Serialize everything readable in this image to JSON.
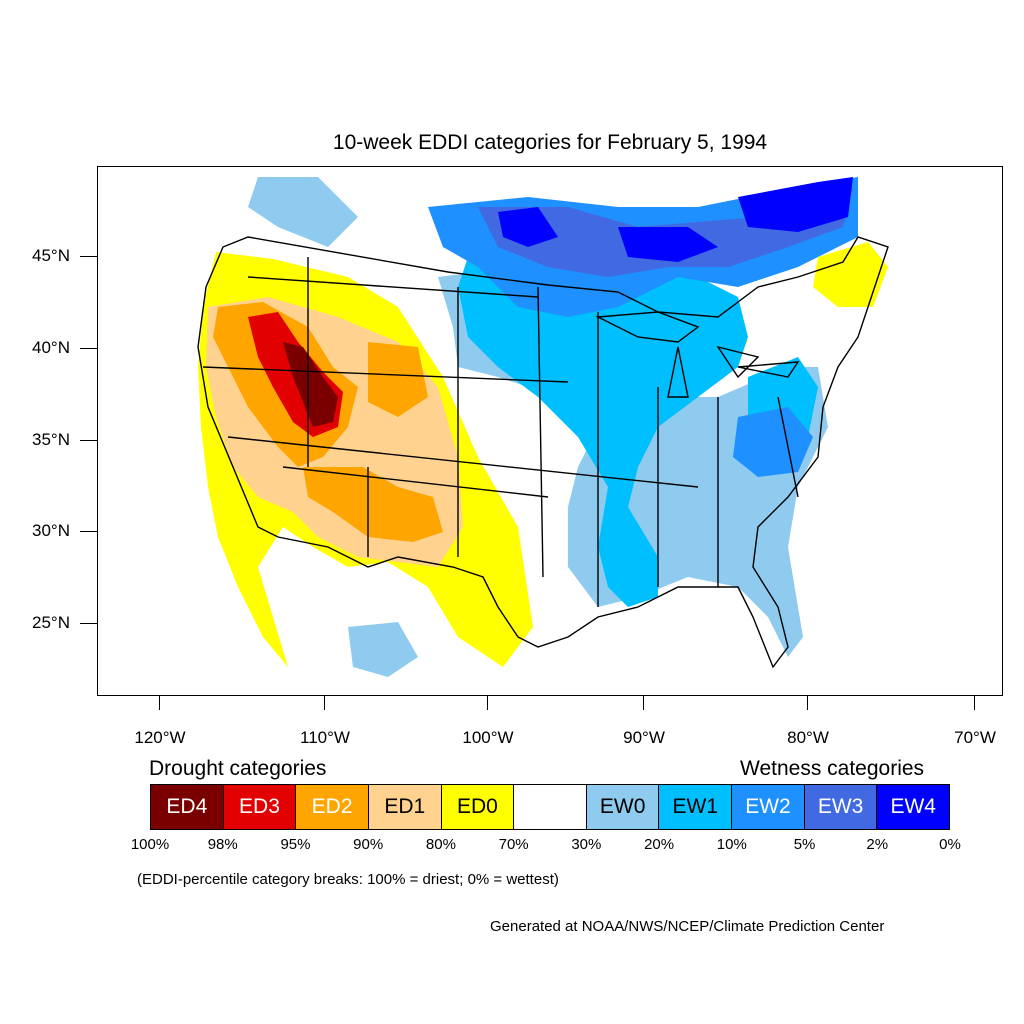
{
  "title": "10-week EDDI categories for February 5, 1994",
  "lat_ticks": [
    "45°N",
    "40°N",
    "35°N",
    "30°N",
    "25°N"
  ],
  "lon_ticks": [
    "120°W",
    "110°W",
    "100°W",
    "90°W",
    "80°W",
    "70°W"
  ],
  "legend": {
    "drought_heading": "Drought categories",
    "wetness_heading": "Wetness categories",
    "categories": [
      {
        "label": "ED4",
        "color": "#7a0000",
        "text_color": "#ffffff"
      },
      {
        "label": "ED3",
        "color": "#e30000",
        "text_color": "#ffffff"
      },
      {
        "label": "ED2",
        "color": "#ffa500",
        "text_color": "#ffffff"
      },
      {
        "label": "ED1",
        "color": "#ffd38f",
        "text_color": "#000000"
      },
      {
        "label": "ED0",
        "color": "#ffff00",
        "text_color": "#000000"
      },
      {
        "label": "",
        "color": "#ffffff",
        "text_color": "#000000"
      },
      {
        "label": "EW0",
        "color": "#8ecbee",
        "text_color": "#000000"
      },
      {
        "label": "EW1",
        "color": "#00bfff",
        "text_color": "#000000"
      },
      {
        "label": "EW2",
        "color": "#1e90ff",
        "text_color": "#ffffff"
      },
      {
        "label": "EW3",
        "color": "#4169e1",
        "text_color": "#ffffff"
      },
      {
        "label": "EW4",
        "color": "#0000ff",
        "text_color": "#ffffff"
      }
    ],
    "percentiles": [
      "100%",
      "98%",
      "95%",
      "90%",
      "80%",
      "70%",
      "30%",
      "20%",
      "10%",
      "5%",
      "2%",
      "0%"
    ]
  },
  "breaks_note": "(EDDI-percentile category breaks: 100% = driest; 0% = wettest)",
  "credit": "Generated at NOAA/NWS/NCEP/Climate Prediction Center"
}
